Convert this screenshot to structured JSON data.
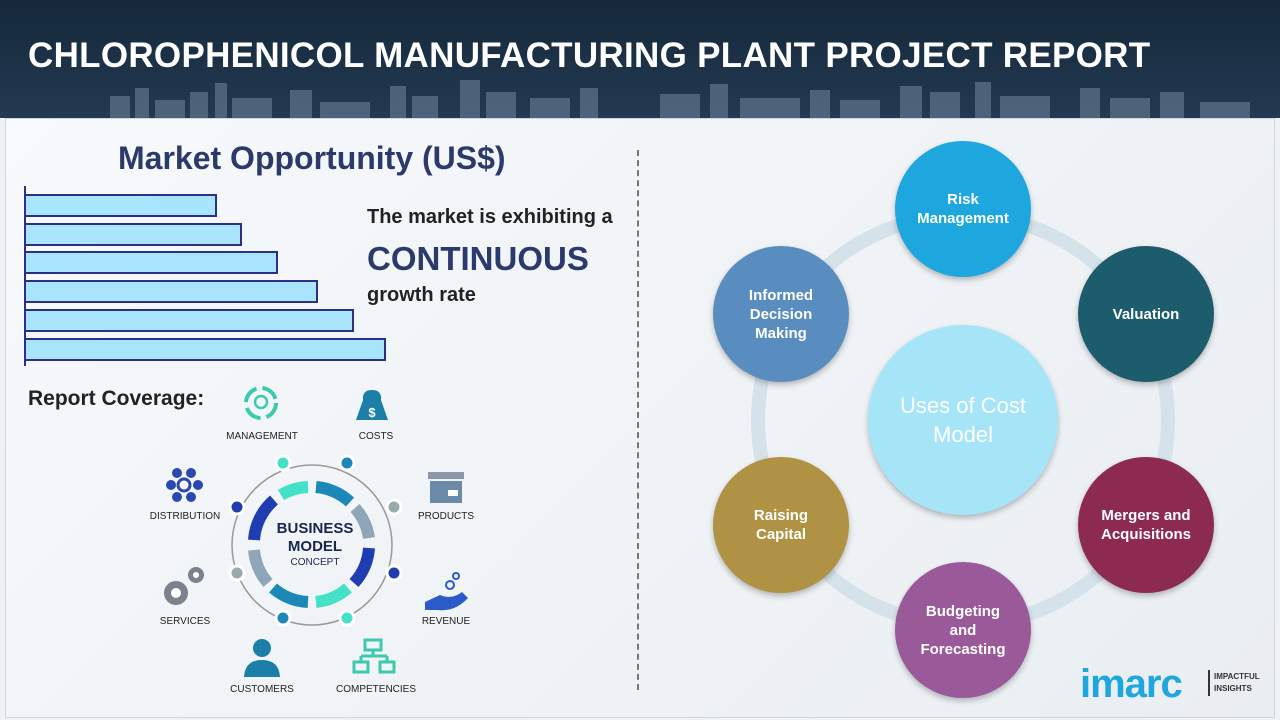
{
  "header": {
    "title": "CHLOROPHENICOL MANUFACTURING PLANT PROJECT REPORT"
  },
  "market": {
    "title": "Market Opportunity (US$)",
    "bar_levels": [
      0.53,
      0.6,
      0.7,
      0.81,
      0.91,
      1.0
    ],
    "bar_color": "#a8e4fb",
    "line1": "The market is exhibiting a",
    "line2": "CONTINUOUS",
    "line3": "growth rate"
  },
  "coverage": {
    "title": "Report Coverage:",
    "center_line1": "BUSINESS",
    "center_line2": "MODEL",
    "center_line3": "CONCEPT",
    "items": [
      "MANAGEMENT",
      "COSTS",
      "PRODUCTS",
      "REVENUE",
      "COMPETENCIES",
      "CUSTOMERS",
      "SERVICES",
      "DISTRIBUTION"
    ]
  },
  "cost_model": {
    "center": "Uses of Cost Model",
    "items": [
      {
        "label": "Risk Management",
        "color": "#1ea6df"
      },
      {
        "label": "Valuation",
        "color": "#1c5c6c"
      },
      {
        "label": "Mergers and Acquisitions",
        "color": "#8c2b4f"
      },
      {
        "label": "Budgeting and Forecasting",
        "color": "#9a5a9a"
      },
      {
        "label": "Raising Capital",
        "color": "#b09244"
      },
      {
        "label": "Informed Decision Making",
        "color": "#5a8dbf"
      }
    ]
  },
  "logo": {
    "brand": "imarc",
    "tagline1": "IMPACTFUL",
    "tagline2": "INSIGHTS"
  }
}
